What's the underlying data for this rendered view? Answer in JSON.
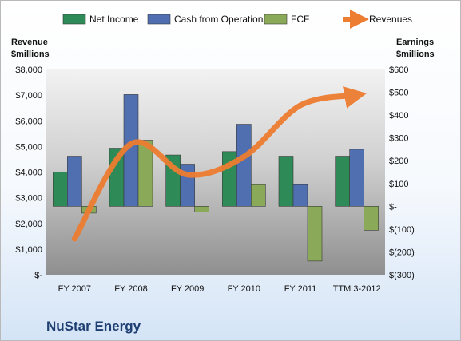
{
  "chart_data": {
    "type": "bar",
    "title": "NuStar Energy",
    "categories": [
      "FY 2007",
      "FY 2008",
      "FY 2009",
      "FY 2010",
      "FY 2011",
      "TTM 3-2012"
    ],
    "left_axis": {
      "title_line1": "Revenue",
      "title_line2": "$millions",
      "range": [
        0,
        8000
      ],
      "tick_labels": [
        "$-",
        "$1,000",
        "$2,000",
        "$3,000",
        "$4,000",
        "$5,000",
        "$6,000",
        "$7,000",
        "$8,000"
      ]
    },
    "right_axis": {
      "title_line1": "Earnings",
      "title_line2": "$millions",
      "range": [
        -300,
        600
      ],
      "tick_labels": [
        "$(300)",
        "$(200)",
        "$(100)",
        "$-",
        "$100",
        "$200",
        "$300",
        "$400",
        "$500",
        "$600"
      ]
    },
    "series": [
      {
        "name": "Net Income",
        "kind": "bar",
        "axis": "right",
        "color": "#2e8b57",
        "values": [
          150,
          255,
          225,
          240,
          220,
          220
        ]
      },
      {
        "name": "Cash from Operations",
        "kind": "bar",
        "axis": "right",
        "color": "#4f6fb0",
        "values": [
          220,
          490,
          185,
          360,
          95,
          250
        ]
      },
      {
        "name": "FCF",
        "kind": "bar",
        "axis": "right",
        "color": "#8aaa5a",
        "values": [
          -30,
          290,
          -25,
          95,
          -240,
          -105
        ]
      },
      {
        "name": "Revenues",
        "kind": "line",
        "axis": "left",
        "color": "#ed7d31",
        "values": [
          1400,
          5100,
          3900,
          4600,
          6600,
          7000
        ]
      }
    ],
    "grid": false,
    "legend_position": "top"
  }
}
